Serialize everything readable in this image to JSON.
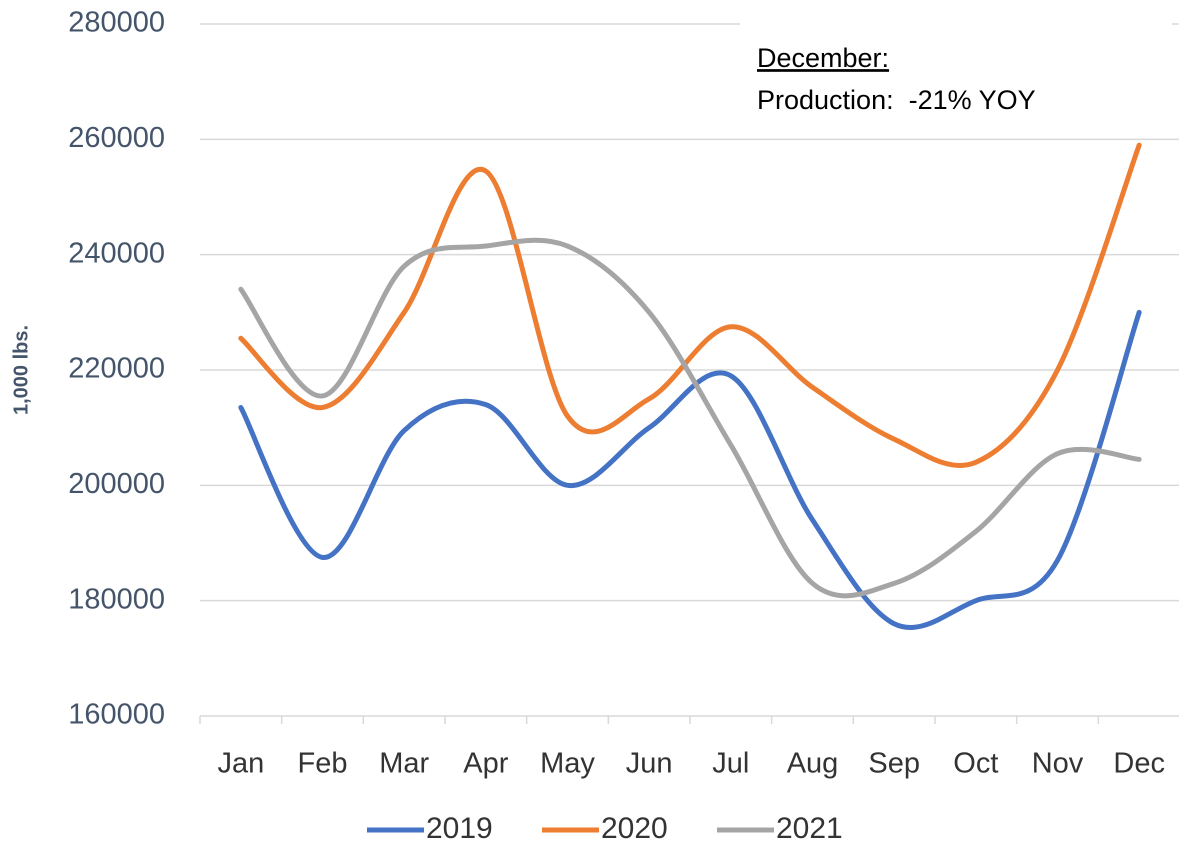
{
  "chart_data": {
    "type": "line",
    "y_label": "1,000 lbs.",
    "annotations": [
      "December:",
      "Production:  -21% YOY"
    ],
    "categories": [
      "Jan",
      "Feb",
      "Mar",
      "Apr",
      "May",
      "Jun",
      "Jul",
      "Aug",
      "Sep",
      "Oct",
      "Nov",
      "Dec"
    ],
    "series": [
      {
        "name": "2019",
        "color": "#4472c4",
        "values": [
          213500,
          187500,
          209500,
          214000,
          200000,
          210000,
          219000,
          194000,
          176000,
          180000,
          187000,
          230000
        ]
      },
      {
        "name": "2020",
        "color": "#ed7d31",
        "values": [
          225500,
          213500,
          230000,
          254500,
          212000,
          215000,
          227500,
          217000,
          208000,
          204000,
          220000,
          259000
        ]
      },
      {
        "name": "2021",
        "color": "#a5a5a5",
        "values": [
          234000,
          215500,
          238000,
          241500,
          241500,
          230000,
          207000,
          183000,
          183000,
          192000,
          205500,
          204500
        ]
      }
    ],
    "ylim": [
      160000,
      280000
    ],
    "yticks": [
      160000,
      180000,
      200000,
      220000,
      240000,
      260000,
      280000
    ],
    "grid": true,
    "smooth": true,
    "legend": "bottom"
  }
}
